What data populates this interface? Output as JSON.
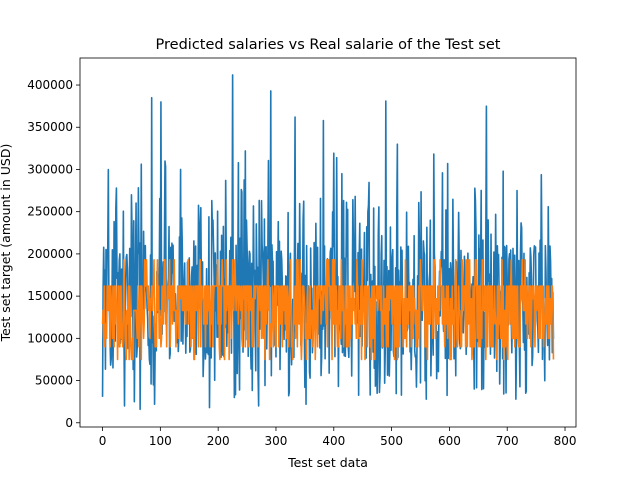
{
  "chart_data": {
    "type": "line",
    "title": "Predicted salaries vs Real salarie of the Test set",
    "xlabel": "Test set data",
    "ylabel": "Test set target (amount in USD)",
    "xlim": [
      -39,
      819
    ],
    "ylim": [
      -5000,
      432000
    ],
    "xticks": [
      0,
      100,
      200,
      300,
      400,
      500,
      600,
      700,
      800
    ],
    "yticks": [
      0,
      50000,
      100000,
      150000,
      200000,
      250000,
      300000,
      350000,
      400000
    ],
    "xtick_labels": [
      "0",
      "100",
      "200",
      "300",
      "400",
      "500",
      "600",
      "700",
      "800"
    ],
    "ytick_labels": [
      "0",
      "50000",
      "100000",
      "150000",
      "200000",
      "250000",
      "300000",
      "350000",
      "400000"
    ],
    "grid": false,
    "n_points": 781,
    "series": [
      {
        "role": "real",
        "color": "#1f77b4",
        "min": 15000,
        "max": 412000,
        "peaks": [
          {
            "x": 24,
            "y": 278000
          },
          {
            "x": 50,
            "y": 270000
          },
          {
            "x": 85,
            "y": 385000
          },
          {
            "x": 101,
            "y": 380000
          },
          {
            "x": 108,
            "y": 310000
          },
          {
            "x": 135,
            "y": 300000
          },
          {
            "x": 225,
            "y": 412000
          },
          {
            "x": 247,
            "y": 322000
          },
          {
            "x": 291,
            "y": 393000
          },
          {
            "x": 333,
            "y": 362000
          },
          {
            "x": 382,
            "y": 358000
          },
          {
            "x": 414,
            "y": 295000
          },
          {
            "x": 490,
            "y": 381000
          },
          {
            "x": 510,
            "y": 330000
          },
          {
            "x": 588,
            "y": 296000
          },
          {
            "x": 664,
            "y": 375000
          },
          {
            "x": 693,
            "y": 298000
          }
        ],
        "troughs": [
          {
            "x": 38,
            "y": 20000
          },
          {
            "x": 55,
            "y": 25000
          },
          {
            "x": 65,
            "y": 16000
          },
          {
            "x": 90,
            "y": 22000
          },
          {
            "x": 185,
            "y": 18000
          },
          {
            "x": 228,
            "y": 30000
          },
          {
            "x": 270,
            "y": 20000
          },
          {
            "x": 322,
            "y": 32000
          },
          {
            "x": 352,
            "y": 22000
          },
          {
            "x": 475,
            "y": 35000
          },
          {
            "x": 560,
            "y": 28000
          },
          {
            "x": 643,
            "y": 40000
          },
          {
            "x": 715,
            "y": 28000
          },
          {
            "x": 732,
            "y": 35000
          }
        ]
      },
      {
        "role": "predicted",
        "color": "#ff7f0e",
        "levels": [
          75000,
          90000,
          100000,
          117000,
          133000,
          147000,
          162000,
          193000
        ]
      }
    ]
  }
}
